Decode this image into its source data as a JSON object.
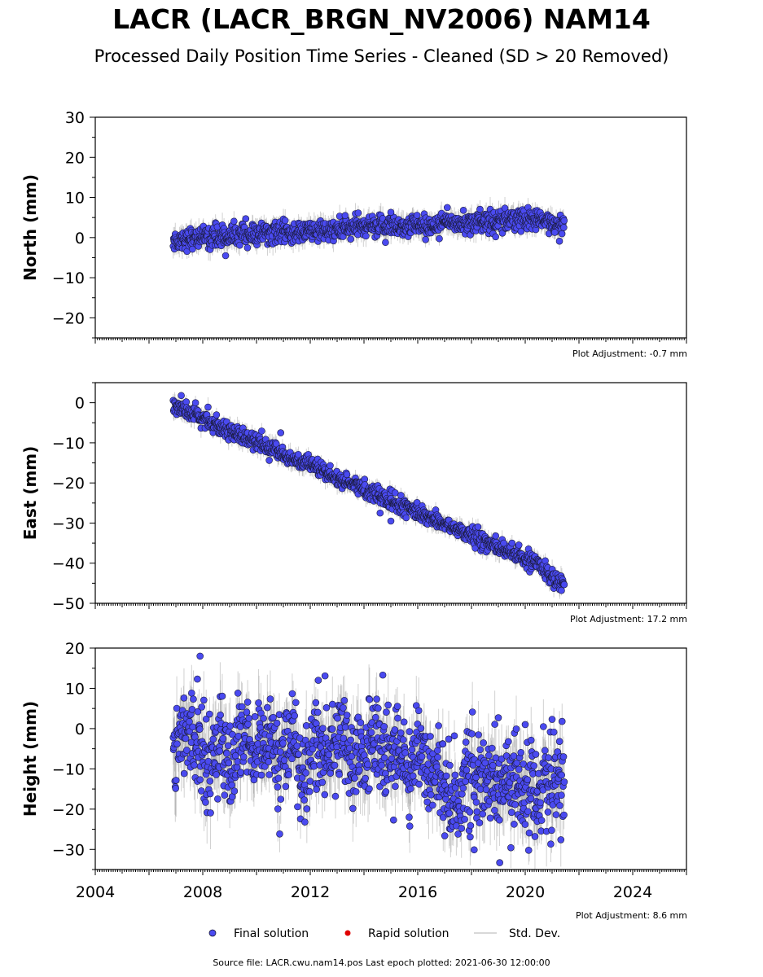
{
  "title": "LACR (LACR_BRGN_NV2006) NAM14",
  "subtitle": "Processed Daily Position Time Series - Cleaned (SD > 20 Removed)",
  "colors": {
    "final": "#4a4af0",
    "rapid": "#e00000",
    "stddev": "#999999",
    "point_edge": "#1a1a3a"
  },
  "chart_data": [
    {
      "type": "scatter",
      "ylabel": "North (mm)",
      "xlim": [
        2004,
        2026
      ],
      "ylim": [
        -25,
        30
      ],
      "yticks": [
        -20,
        -10,
        0,
        10,
        20,
        30
      ],
      "x_tick_labels_shown": false,
      "adjustment": "Plot Adjustment: -0.7 mm",
      "series": [
        {
          "name": "Final solution",
          "x": [
            2006.9,
            2007.3,
            2007.7,
            2008.1,
            2008.5,
            2008.9,
            2009.3,
            2009.7,
            2010.1,
            2010.5,
            2010.9,
            2011.3,
            2011.7,
            2012.1,
            2012.5,
            2012.9,
            2013.3,
            2013.7,
            2014.1,
            2014.5,
            2014.9,
            2015.3,
            2015.7,
            2016.1,
            2016.5,
            2016.9,
            2017.3,
            2017.7,
            2018.1,
            2018.5,
            2018.9,
            2019.3,
            2019.7,
            2020.1,
            2020.5,
            2020.9,
            2021.2,
            2021.45
          ],
          "y": [
            -0.8,
            -0.5,
            0.2,
            0.0,
            0.4,
            0.3,
            0.8,
            0.6,
            1.0,
            1.1,
            1.2,
            1.0,
            1.4,
            1.6,
            1.5,
            2.0,
            2.2,
            2.5,
            2.6,
            2.9,
            3.3,
            2.8,
            3.0,
            3.2,
            3.0,
            3.4,
            3.6,
            3.8,
            3.9,
            4.0,
            4.2,
            4.5,
            4.6,
            4.4,
            4.1,
            3.7,
            3.5,
            3.3
          ],
          "scatter_mm": 1.3,
          "std_dev_mm": 2.2,
          "outliers": [
            {
              "x": 2008.85,
              "y": -4.5
            },
            {
              "x": 2013.3,
              "y": 5.5
            },
            {
              "x": 2014.8,
              "y": -1.2
            },
            {
              "x": 2015.0,
              "y": 6.3
            },
            {
              "x": 2017.1,
              "y": 7.5
            },
            {
              "x": 2017.7,
              "y": 6.8
            },
            {
              "x": 2018.9,
              "y": 0.2
            },
            {
              "x": 2021.1,
              "y": 1.3
            },
            {
              "x": 2009.6,
              "y": 4.7
            }
          ]
        }
      ]
    },
    {
      "type": "scatter",
      "ylabel": "East (mm)",
      "xlim": [
        2004,
        2026
      ],
      "ylim": [
        -50,
        5
      ],
      "yticks": [
        -50,
        -40,
        -30,
        -20,
        -10,
        0
      ],
      "x_tick_labels_shown": false,
      "adjustment": "Plot Adjustment: 17.2 mm",
      "series": [
        {
          "name": "Final solution",
          "x": [
            2006.9,
            2007.3,
            2007.7,
            2008.1,
            2008.5,
            2008.9,
            2009.3,
            2009.7,
            2010.1,
            2010.5,
            2010.9,
            2011.3,
            2011.7,
            2012.1,
            2012.5,
            2012.9,
            2013.3,
            2013.7,
            2014.1,
            2014.5,
            2014.9,
            2015.3,
            2015.7,
            2016.1,
            2016.5,
            2016.9,
            2017.3,
            2017.7,
            2018.1,
            2018.5,
            2018.9,
            2019.3,
            2019.7,
            2020.1,
            2020.5,
            2020.9,
            2021.2,
            2021.45
          ],
          "y": [
            -0.5,
            -1.8,
            -3.2,
            -4.1,
            -5.5,
            -6.5,
            -7.8,
            -9.2,
            -10.2,
            -11.3,
            -12.5,
            -13.8,
            -15.0,
            -16.1,
            -17.2,
            -18.5,
            -19.6,
            -20.7,
            -21.8,
            -23.0,
            -24.2,
            -25.4,
            -26.5,
            -27.6,
            -28.8,
            -30.0,
            -31.2,
            -32.3,
            -33.5,
            -34.7,
            -35.8,
            -37.0,
            -38.2,
            -39.3,
            -40.5,
            -42.8,
            -44.0,
            -45.2
          ],
          "scatter_mm": 1.0,
          "std_dev_mm": 1.8,
          "outliers": [
            {
              "x": 2007.2,
              "y": 1.8
            },
            {
              "x": 2010.9,
              "y": -7.5
            },
            {
              "x": 2015.0,
              "y": -29.5
            },
            {
              "x": 2018.9,
              "y": -33.2
            },
            {
              "x": 2019.2,
              "y": -35.0
            },
            {
              "x": 2014.6,
              "y": -27.5
            }
          ]
        }
      ]
    },
    {
      "type": "scatter",
      "ylabel": "Height (mm)",
      "xlim": [
        2004,
        2026
      ],
      "ylim": [
        -35,
        20
      ],
      "yticks": [
        -30,
        -20,
        -10,
        0,
        10,
        20
      ],
      "xticks": [
        2004,
        2008,
        2012,
        2016,
        2020,
        2024
      ],
      "x_tick_labels_shown": true,
      "adjustment": "Plot Adjustment: 8.6 mm",
      "series": [
        {
          "name": "Final solution",
          "x": [
            2006.9,
            2007.2,
            2007.5,
            2007.8,
            2008.1,
            2008.4,
            2008.7,
            2009.0,
            2009.3,
            2009.6,
            2009.9,
            2010.2,
            2010.5,
            2010.8,
            2011.1,
            2011.4,
            2011.7,
            2012.0,
            2012.3,
            2012.6,
            2012.9,
            2013.2,
            2013.5,
            2013.8,
            2014.1,
            2014.4,
            2014.7,
            2015.0,
            2015.3,
            2015.6,
            2015.9,
            2016.2,
            2016.5,
            2016.8,
            2017.1,
            2017.4,
            2017.7,
            2018.0,
            2018.3,
            2018.6,
            2018.9,
            2019.2,
            2019.5,
            2019.8,
            2020.1,
            2020.4,
            2020.7,
            2021.0,
            2021.3,
            2021.45
          ],
          "y": [
            -6,
            0,
            -3,
            -1,
            -8,
            -6,
            -2,
            -12,
            -4,
            -2,
            -9,
            -5,
            -2,
            -10,
            -6,
            -3,
            -12,
            -5,
            -2,
            -8,
            -4,
            -2,
            -9,
            -5,
            -6,
            -3,
            -8,
            -6,
            -4,
            -11,
            -5,
            -7,
            -9,
            -12,
            -15,
            -17,
            -14,
            -12,
            -16,
            -13,
            -11,
            -15,
            -17,
            -12,
            -14,
            -16,
            -13,
            -15,
            -14,
            -13
          ],
          "scatter_mm": 5.5,
          "std_dev_mm": 6.5,
          "outliers": [
            {
              "x": 2007.9,
              "y": 18.0
            },
            {
              "x": 2007.8,
              "y": 12.3
            },
            {
              "x": 2012.3,
              "y": 12.0
            },
            {
              "x": 2012.55,
              "y": 13.1
            },
            {
              "x": 2014.7,
              "y": 13.3
            },
            {
              "x": 2011.8,
              "y": -23.2
            },
            {
              "x": 2015.1,
              "y": -22.7
            },
            {
              "x": 2017.5,
              "y": -26.2
            },
            {
              "x": 2018.1,
              "y": -30.1
            },
            {
              "x": 2019.05,
              "y": -33.3
            },
            {
              "x": 2019.0,
              "y": 2.7
            },
            {
              "x": 2020.0,
              "y": 1.0
            },
            {
              "x": 2021.0,
              "y": 2.3
            }
          ]
        }
      ]
    }
  ],
  "legend": {
    "final_label": "Final solution",
    "rapid_label": "Rapid solution",
    "stddev_label": "Std. Dev."
  },
  "source": "Source file: LACR.cwu.nam14.pos  Last epoch plotted: 2021-06-30 12:00:00"
}
